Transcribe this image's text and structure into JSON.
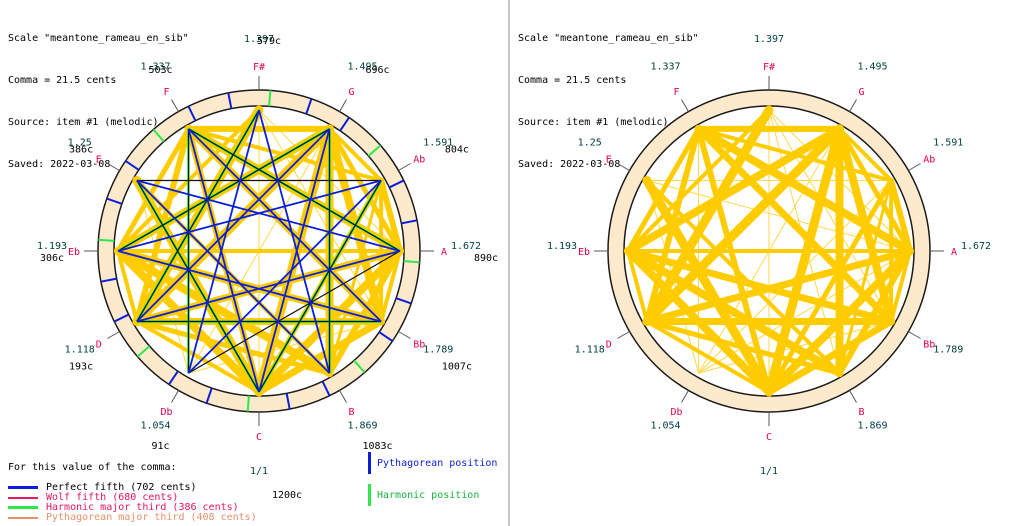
{
  "header": {
    "scale_line": "Scale \"meantone_rameau_en_sib\"",
    "comma_line": "Comma = 21.5 cents",
    "source_line": "Source: item #1 (melodic)",
    "saved_line": "Saved: 2022-03-08"
  },
  "notes": [
    {
      "name": "C",
      "ratio": "1/1",
      "cents": "1200c"
    },
    {
      "name": "Db",
      "ratio": "1.054",
      "cents": "91c"
    },
    {
      "name": "D",
      "ratio": "1.118",
      "cents": "193c"
    },
    {
      "name": "Eb",
      "ratio": "1.193",
      "cents": "306c"
    },
    {
      "name": "E",
      "ratio": "1.25",
      "cents": "386c"
    },
    {
      "name": "F",
      "ratio": "1.337",
      "cents": "503c"
    },
    {
      "name": "F#",
      "ratio": "1.397",
      "cents": "579c"
    },
    {
      "name": "G",
      "ratio": "1.495",
      "cents": "696c"
    },
    {
      "name": "Ab",
      "ratio": "1.591",
      "cents": "804c"
    },
    {
      "name": "A",
      "ratio": "1.672",
      "cents": "890c"
    },
    {
      "name": "Bb",
      "ratio": "1.789",
      "cents": "1007c"
    },
    {
      "name": "B",
      "ratio": "1.869",
      "cents": "1083c"
    }
  ],
  "legend": {
    "title": "For this value of the comma:",
    "items": [
      {
        "label": "Perfect fifth (702 cents)",
        "color": "#0a1edc"
      },
      {
        "label": "Wolf fifth (680 cents)",
        "color": "#e8155a"
      },
      {
        "label": "Harmonic major third (386 cents)",
        "color": "#2ee84a"
      },
      {
        "label": "Pythagorean major third (408 cents)",
        "color": "#e8906a"
      }
    ],
    "pythagorean_position": "Pythagorean position",
    "harmonic_position": "Harmonic position"
  },
  "colors": {
    "note_name": "#e0004a",
    "ratio": "#004040",
    "ring_fill": "#fde9cc",
    "yellow_edge": "#ffcc00",
    "fifth": "#0a1edc",
    "harmonic_third": "#2ee84a",
    "dark_edge": "#101010"
  }
}
